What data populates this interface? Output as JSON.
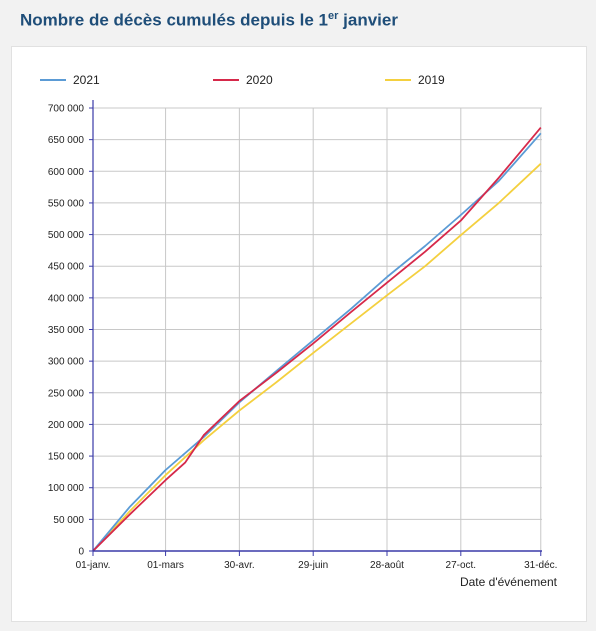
{
  "header": {
    "title_main": "Nombre de décès cumulés depuis le 1",
    "title_sup": "er",
    "title_end": " janvier"
  },
  "colors": {
    "series_2021": "#5b9bd5",
    "series_2020": "#d6294a",
    "series_2019": "#f4d03f",
    "grid": "#c8c8c8",
    "axis": "#3a3aa8"
  },
  "chart_data": {
    "type": "line",
    "xlabel": "Date d'événement",
    "ylabel": "",
    "ylim": [
      0,
      700000
    ],
    "xlim": [
      0,
      365
    ],
    "grid": true,
    "legend_position": "top",
    "x_ticks": [
      {
        "day": 0,
        "label": "01-janv."
      },
      {
        "day": 59,
        "label": "01-mars"
      },
      {
        "day": 119,
        "label": "30-avr."
      },
      {
        "day": 179,
        "label": "29-juin"
      },
      {
        "day": 239,
        "label": "28-août"
      },
      {
        "day": 299,
        "label": "27-oct."
      },
      {
        "day": 364,
        "label": "31-déc."
      }
    ],
    "y_ticks": [
      {
        "value": 0,
        "label": "0"
      },
      {
        "value": 50000,
        "label": "50 000"
      },
      {
        "value": 100000,
        "label": "100 000"
      },
      {
        "value": 150000,
        "label": "150 000"
      },
      {
        "value": 200000,
        "label": "200 000"
      },
      {
        "value": 250000,
        "label": "250 000"
      },
      {
        "value": 300000,
        "label": "300 000"
      },
      {
        "value": 350000,
        "label": "350 000"
      },
      {
        "value": 400000,
        "label": "400 000"
      },
      {
        "value": 450000,
        "label": "450 000"
      },
      {
        "value": 500000,
        "label": "500 000"
      },
      {
        "value": 550000,
        "label": "550 000"
      },
      {
        "value": 600000,
        "label": "600 000"
      },
      {
        "value": 650000,
        "label": "650 000"
      },
      {
        "value": 700000,
        "label": "700 000"
      }
    ],
    "series": [
      {
        "name": "2021",
        "color": "#5b9bd5",
        "x": [
          0,
          30,
          59,
          90,
          119,
          150,
          179,
          210,
          239,
          270,
          299,
          330,
          364
        ],
        "y": [
          0,
          70000,
          128000,
          180000,
          235000,
          286000,
          333000,
          383000,
          433000,
          482000,
          531000,
          585000,
          660000
        ]
      },
      {
        "name": "2020",
        "color": "#d6294a",
        "x": [
          0,
          30,
          59,
          75,
          90,
          119,
          150,
          179,
          210,
          239,
          270,
          299,
          330,
          364
        ],
        "y": [
          0,
          58000,
          112000,
          140000,
          183000,
          237000,
          283000,
          328000,
          378000,
          424000,
          473000,
          522000,
          590000,
          669000
        ]
      },
      {
        "name": "2019",
        "color": "#f4d03f",
        "x": [
          0,
          30,
          59,
          90,
          119,
          150,
          179,
          210,
          239,
          270,
          299,
          330,
          364
        ],
        "y": [
          0,
          63000,
          120000,
          175000,
          222000,
          268000,
          313000,
          360000,
          404000,
          450000,
          499000,
          550000,
          612000
        ]
      }
    ]
  }
}
